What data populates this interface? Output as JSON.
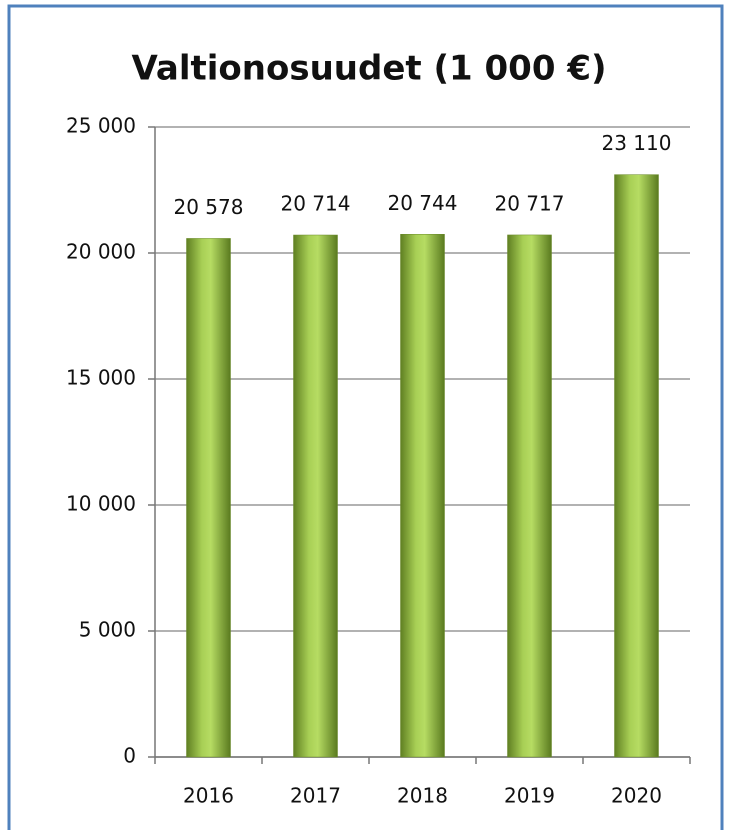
{
  "chart_data": {
    "type": "bar",
    "title": "Valtionosuudet (1 000 €)",
    "categories": [
      "2016",
      "2017",
      "2018",
      "2019",
      "2020"
    ],
    "values": [
      20578,
      20714,
      20744,
      20717,
      23110
    ],
    "value_labels": [
      "20 578",
      "20 714",
      "20 744",
      "20 717",
      "23 110"
    ],
    "color": "#8db33a",
    "ylim": [
      0,
      25000
    ],
    "yticks": [
      0,
      {
        "value": 5000,
        "label": "5 000"
      },
      {
        "value": 10000,
        "label": "10 000"
      },
      {
        "value": 15000,
        "label": "15 000"
      },
      {
        "value": 20000,
        "label": "20 000"
      },
      {
        "value": 25000,
        "label": "25 000"
      }
    ],
    "grid": true
  }
}
